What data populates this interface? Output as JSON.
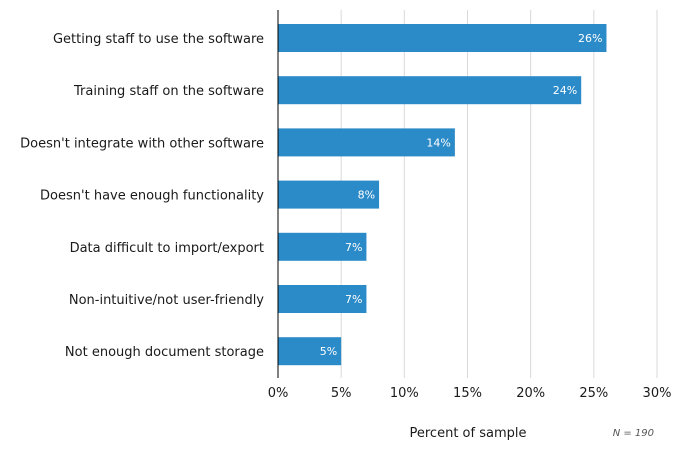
{
  "chart_data": {
    "type": "bar",
    "orientation": "horizontal",
    "categories": [
      "Getting staff to use the software",
      "Training staff on the software",
      "Doesn't integrate with other software",
      "Doesn't have enough functionality",
      "Data difficult to import/export",
      "Non-intuitive/not user-friendly",
      "Not enough document storage"
    ],
    "values": [
      26,
      24,
      14,
      8,
      7,
      7,
      5
    ],
    "value_labels": [
      "26%",
      "24%",
      "14%",
      "8%",
      "7%",
      "7%",
      "5%"
    ],
    "xlabel": "Percent of sample",
    "xlim": [
      0,
      30
    ],
    "xticks": [
      0,
      5,
      10,
      15,
      20,
      25,
      30
    ],
    "xtick_labels": [
      "0%",
      "5%",
      "10%",
      "15%",
      "20%",
      "25%",
      "30%"
    ],
    "grid": true,
    "note": "N = 190",
    "colors": {
      "bar": "#2b8ac8",
      "grid": "#d9d9d9",
      "axis": "#000000"
    }
  }
}
